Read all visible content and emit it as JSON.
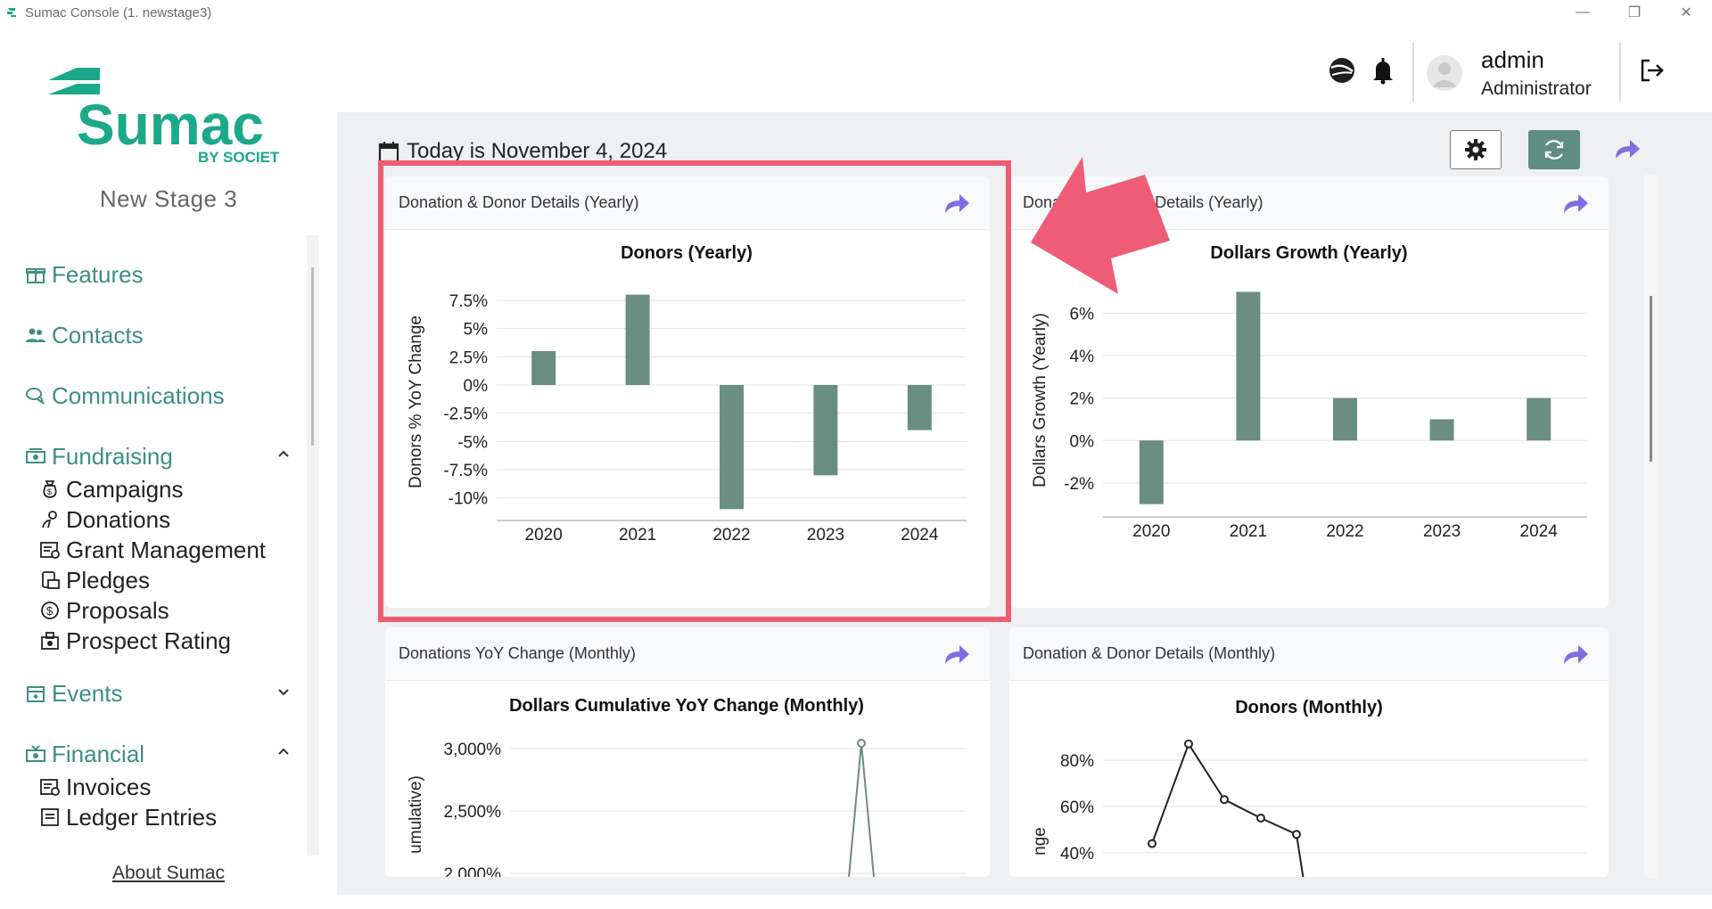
{
  "window": {
    "title": "Sumac Console (1. newstage3)",
    "controls": [
      "—",
      "❐",
      "✕"
    ]
  },
  "brand": {
    "name": "Sumac",
    "byline": "BY SOCIET",
    "stage": "New Stage 3",
    "colors": {
      "brand": "#1ba98a",
      "chart_bar": "#6a8e81",
      "highlight": "#ee5c76",
      "share": "#7c6fe3"
    }
  },
  "sidebar": {
    "sections": [
      {
        "label": "Features",
        "icon": "gift-icon"
      },
      {
        "label": "Contacts",
        "icon": "people-icon"
      },
      {
        "label": "Communications",
        "icon": "chat-icon"
      },
      {
        "label": "Fundraising",
        "icon": "money-icon",
        "expanded": true,
        "items": [
          {
            "label": "Campaigns",
            "icon": "moneybag-icon"
          },
          {
            "label": "Donations",
            "icon": "hand-coin-icon"
          },
          {
            "label": "Grant Management",
            "icon": "grant-icon"
          },
          {
            "label": "Pledges",
            "icon": "pledge-icon"
          },
          {
            "label": "Proposals",
            "icon": "dollar-circle-icon"
          },
          {
            "label": "Prospect Rating",
            "icon": "rating-icon"
          }
        ]
      },
      {
        "label": "Events",
        "icon": "calendar-icon",
        "expanded": false
      },
      {
        "label": "Financial",
        "icon": "cash-icon",
        "expanded": true,
        "items": [
          {
            "label": "Invoices",
            "icon": "invoice-icon"
          },
          {
            "label": "Ledger Entries",
            "icon": "ledger-icon"
          }
        ]
      }
    ],
    "about": "About Sumac"
  },
  "header": {
    "user": {
      "name": "admin",
      "role": "Administrator"
    }
  },
  "main": {
    "date_text": "Today is November 4, 2024"
  },
  "cards": [
    {
      "title": "Donation & Donor Details (Yearly)"
    },
    {
      "title": "Donation & Donor Details (Yearly)"
    },
    {
      "title": "Donations YoY Change (Monthly)"
    },
    {
      "title": "Donation & Donor Details (Monthly)"
    }
  ],
  "chart_data": [
    {
      "type": "bar",
      "title": "Donors (Yearly)",
      "ylabel": "Donors % YoY Change",
      "categories": [
        "2020",
        "2021",
        "2022",
        "2023",
        "2024"
      ],
      "values": [
        3,
        8,
        -11,
        -8,
        -4
      ],
      "yticks": [
        "7.5%",
        "5%",
        "2.5%",
        "0%",
        "-2.5%",
        "-5%",
        "-7.5%",
        "-10%"
      ],
      "ylim": [
        -12,
        9
      ],
      "grid": true
    },
    {
      "type": "bar",
      "title": "Dollars Growth (Yearly)",
      "ylabel": "Dollars Growth (Yearly)",
      "categories": [
        "2020",
        "2021",
        "2022",
        "2023",
        "2024"
      ],
      "values": [
        -3,
        7,
        2,
        1,
        2
      ],
      "yticks": [
        "6%",
        "4%",
        "2%",
        "0%",
        "-2%"
      ],
      "ylim": [
        -3.6,
        7.4
      ],
      "grid": true
    },
    {
      "type": "line",
      "title": "Dollars Cumulative YoY Change (Monthly)",
      "ylabel": "umulative)",
      "yticks": [
        "3,000%",
        "2,500%",
        "2,000%"
      ],
      "grid": true
    },
    {
      "type": "line",
      "title": "Donors (Monthly)",
      "ylabel": "nge",
      "yticks": [
        "80%",
        "60%",
        "40%"
      ],
      "values": [
        44,
        87,
        63,
        55,
        48
      ],
      "grid": true
    }
  ]
}
